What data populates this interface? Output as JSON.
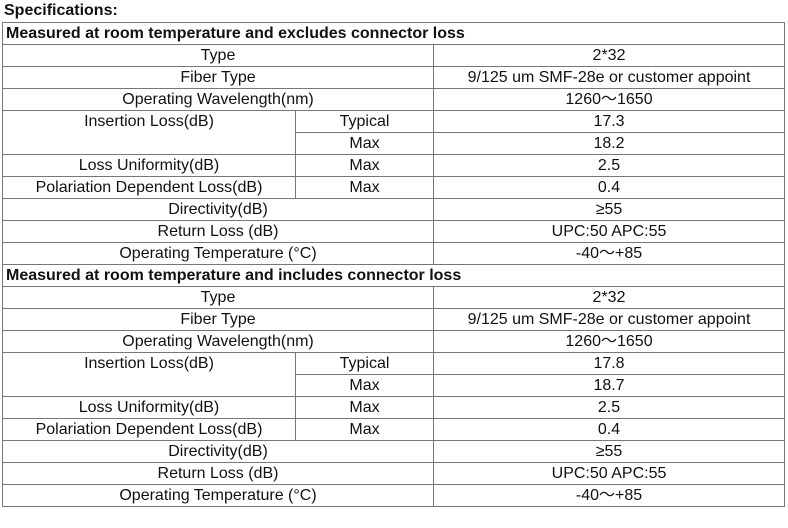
{
  "page_title": "Specifications:",
  "sections": [
    {
      "heading": "Measured at room temperature and excludes connector loss",
      "type_label": "Type",
      "type_value": "2*32",
      "fiber_label": "Fiber Type",
      "fiber_value": "9/125 um SMF-28e or customer appoint",
      "wavelength_label": "Operating Wavelength(nm)",
      "wavelength_value": "1260～1650",
      "il_label": "Insertion Loss(dB)",
      "il_typ_label": "Typical",
      "il_typ_value": "17.3",
      "il_max_label": "Max",
      "il_max_value": "18.2",
      "lu_label": "Loss Uniformity(dB)",
      "lu_cond": "Max",
      "lu_value": "2.5",
      "pdl_label": "Polariation Dependent Loss(dB)",
      "pdl_cond": "Max",
      "pdl_value": "0.4",
      "dir_label": "Directivity(dB)",
      "dir_value": "≥55",
      "rl_label": "Return Loss (dB)",
      "rl_value": "UPC:50 APC:55",
      "temp_label": "Operating Temperature (°C)",
      "temp_value": "-40～+85"
    },
    {
      "heading": "Measured at room temperature and includes connector loss",
      "type_label": "Type",
      "type_value": "2*32",
      "fiber_label": "Fiber Type",
      "fiber_value": "9/125 um SMF-28e or customer appoint",
      "wavelength_label": "Operating Wavelength(nm)",
      "wavelength_value": "1260～1650",
      "il_label": "Insertion Loss(dB)",
      "il_typ_label": "Typical",
      "il_typ_value": "17.8",
      "il_max_label": "Max",
      "il_max_value": "18.7",
      "lu_label": "Loss Uniformity(dB)",
      "lu_cond": "Max",
      "lu_value": "2.5",
      "pdl_label": "Polariation Dependent Loss(dB)",
      "pdl_cond": "Max",
      "pdl_value": "0.4",
      "dir_label": "Directivity(dB)",
      "dir_value": "≥55",
      "rl_label": "Return Loss (dB)",
      "rl_value": "UPC:50 APC:55",
      "temp_label": "Operating Temperature (°C)",
      "temp_value": "-40～+85"
    }
  ]
}
